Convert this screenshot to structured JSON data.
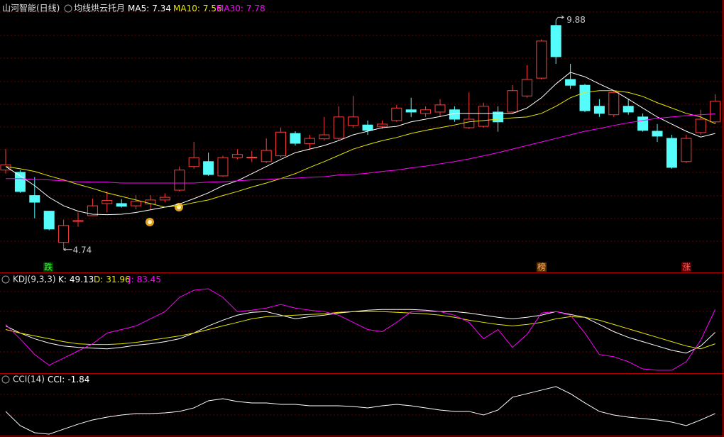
{
  "chart_data": [
    {
      "type": "candlestick",
      "title": "山河智能(日线)",
      "subtitle": "均线烘云托月",
      "open": [
        6.52,
        6.47,
        5.95,
        5.6,
        4.9,
        5.37,
        5.5,
        5.77,
        5.77,
        5.72,
        5.76,
        5.85,
        6.07,
        6.6,
        6.71,
        6.39,
        6.8,
        6.8,
        6.71,
        6.84,
        7.34,
        7.11,
        7.22,
        7.23,
        7.52,
        7.53,
        7.5,
        7.63,
        7.87,
        7.79,
        7.82,
        7.87,
        7.47,
        7.5,
        7.82,
        7.82,
        8.18,
        8.58,
        9.76,
        8.55,
        8.42,
        7.95,
        7.76,
        7.95,
        7.71,
        7.39,
        7.23,
        6.71,
        7.36,
        7.6
      ],
      "high": [
        6.99,
        6.52,
        6.36,
        5.6,
        5.41,
        5.57,
        5.88,
        6.04,
        5.87,
        5.96,
        5.96,
        6.0,
        6.6,
        7.15,
        6.91,
        6.84,
        6.99,
        6.95,
        7.23,
        7.47,
        7.39,
        7.31,
        7.71,
        7.95,
        8.18,
        7.63,
        7.63,
        7.98,
        8.14,
        7.95,
        8.11,
        7.95,
        8.26,
        8.03,
        7.95,
        8.42,
        8.87,
        9.45,
        9.88,
        8.9,
        8.45,
        8.11,
        8.3,
        8.11,
        7.79,
        7.55,
        7.31,
        7.31,
        7.87,
        8.22
      ],
      "low": [
        6.44,
        6.01,
        5.44,
        5.17,
        4.74,
        5.25,
        5.49,
        5.57,
        5.68,
        5.64,
        5.64,
        5.8,
        6.04,
        6.55,
        6.39,
        6.37,
        6.76,
        6.7,
        6.68,
        6.8,
        7.07,
        6.99,
        7.18,
        7.18,
        7.47,
        7.31,
        7.44,
        7.6,
        7.71,
        7.71,
        7.71,
        7.6,
        7.44,
        7.47,
        7.38,
        7.79,
        8.14,
        8.55,
        8.9,
        8.34,
        7.82,
        7.71,
        7.71,
        7.76,
        7.38,
        7.15,
        6.55,
        6.68,
        7.31,
        7.55
      ],
      "close": [
        6.64,
        6.04,
        5.8,
        5.2,
        5.28,
        5.39,
        5.72,
        5.84,
        5.71,
        5.82,
        5.85,
        5.91,
        6.52,
        6.8,
        6.42,
        6.8,
        6.87,
        6.81,
        6.96,
        7.37,
        7.12,
        7.23,
        7.31,
        7.71,
        7.71,
        7.41,
        7.55,
        7.91,
        7.82,
        7.87,
        7.98,
        7.66,
        7.66,
        7.95,
        7.6,
        8.3,
        8.55,
        9.41,
        9.06,
        8.42,
        7.85,
        7.79,
        8.26,
        7.82,
        7.41,
        7.28,
        6.58,
        7.23,
        7.66,
        8.06
      ],
      "up_color": "#ff3c3c",
      "down_color": "#54fcfc",
      "series": [
        {
          "name": "MA5:",
          "color": "#ffffff",
          "values": [
            6.6,
            6.39,
            6.17,
            5.91,
            5.72,
            5.6,
            5.53,
            5.52,
            5.53,
            5.57,
            5.63,
            5.69,
            5.76,
            5.88,
            6.01,
            6.17,
            6.28,
            6.44,
            6.6,
            6.76,
            6.91,
            6.99,
            7.07,
            7.18,
            7.31,
            7.39,
            7.47,
            7.5,
            7.6,
            7.66,
            7.72,
            7.79,
            7.79,
            7.79,
            7.79,
            7.79,
            7.91,
            8.14,
            8.45,
            8.71,
            8.61,
            8.45,
            8.3,
            8.11,
            7.91,
            7.71,
            7.55,
            7.39,
            7.26,
            7.34
          ]
        },
        {
          "name": "MA10:",
          "color": "#e8e800",
          "values": [
            6.6,
            6.55,
            6.49,
            6.39,
            6.3,
            6.2,
            6.11,
            6.01,
            5.93,
            5.85,
            5.77,
            5.69,
            5.72,
            5.79,
            5.85,
            5.95,
            6.04,
            6.14,
            6.23,
            6.33,
            6.44,
            6.58,
            6.71,
            6.85,
            6.99,
            7.09,
            7.18,
            7.25,
            7.34,
            7.41,
            7.47,
            7.53,
            7.6,
            7.63,
            7.66,
            7.69,
            7.71,
            7.79,
            7.95,
            8.14,
            8.26,
            8.3,
            8.3,
            8.26,
            8.17,
            8.03,
            7.91,
            7.79,
            7.71,
            7.56
          ]
        },
        {
          "name": "MA30:",
          "color": "#ff00ff",
          "values": [
            6.33,
            6.33,
            6.31,
            6.3,
            6.28,
            6.26,
            6.25,
            6.25,
            6.23,
            6.23,
            6.23,
            6.23,
            6.23,
            6.23,
            6.25,
            6.26,
            6.28,
            6.3,
            6.31,
            6.33,
            6.34,
            6.36,
            6.37,
            6.41,
            6.42,
            6.45,
            6.49,
            6.52,
            6.57,
            6.61,
            6.66,
            6.71,
            6.77,
            6.84,
            6.91,
            6.99,
            7.07,
            7.15,
            7.23,
            7.31,
            7.39,
            7.45,
            7.52,
            7.58,
            7.63,
            7.68,
            7.71,
            7.74,
            7.76,
            7.78
          ]
        }
      ],
      "ylim": [
        4.45,
        10.33
      ],
      "annotations": [
        "跌",
        "榜",
        "涨"
      ]
    },
    {
      "type": "line",
      "title": "KDJ(9,3,3)",
      "ylim": [
        -11,
        138
      ],
      "series": [
        {
          "name": "K:",
          "color": "#ffffff",
          "values": [
            58.8,
            48.1,
            39.5,
            33.0,
            28.7,
            26.6,
            25.5,
            24.4,
            26.6,
            29.8,
            32.0,
            35.2,
            39.5,
            48.1,
            58.8,
            67.4,
            74.9,
            79.2,
            80.2,
            74.9,
            69.5,
            72.7,
            74.9,
            78.1,
            80.2,
            82.4,
            83.5,
            83.5,
            83.5,
            82.4,
            80.2,
            80.2,
            78.1,
            74.9,
            71.7,
            69.5,
            71.7,
            74.9,
            80.2,
            76.0,
            71.7,
            61.0,
            50.2,
            41.6,
            35.2,
            28.7,
            22.3,
            18.0,
            28.7,
            49.13
          ]
        },
        {
          "name": "D:",
          "color": "#e8e800",
          "values": [
            53.4,
            48.1,
            43.8,
            39.5,
            35.2,
            32.0,
            30.9,
            30.9,
            32.0,
            34.1,
            37.3,
            40.5,
            43.8,
            48.1,
            53.4,
            58.8,
            64.1,
            69.5,
            72.7,
            73.8,
            74.9,
            76.0,
            77.0,
            79.2,
            80.2,
            80.2,
            80.2,
            79.2,
            78.1,
            77.0,
            74.9,
            71.7,
            67.4,
            64.1,
            61.0,
            58.8,
            61.0,
            64.1,
            69.5,
            72.7,
            71.7,
            67.4,
            61.0,
            54.5,
            48.1,
            41.6,
            35.2,
            28.7,
            24.4,
            31.96
          ]
        },
        {
          "name": "J:",
          "color": "#ff00ff",
          "values": [
            60.9,
            39.5,
            15.9,
            -0.2,
            10.5,
            21.2,
            32.0,
            48.1,
            53.4,
            58.8,
            69.5,
            80.2,
            101.7,
            112.4,
            114.6,
            101.7,
            80.2,
            82.4,
            85.6,
            91.0,
            85.6,
            82.4,
            80.2,
            74.9,
            64.1,
            53.4,
            50.2,
            64.1,
            80.2,
            80.2,
            80.2,
            74.9,
            64.1,
            39.5,
            53.4,
            26.6,
            45.9,
            78.1,
            80.2,
            74.9,
            48.1,
            15.9,
            12.6,
            5.1,
            -5.7,
            -7.7,
            -7.7,
            5.1,
            37.3,
            83.45
          ]
        }
      ]
    },
    {
      "type": "line",
      "title": "CCI(14)",
      "ylim": [
        -134,
        218
      ],
      "series": [
        {
          "name": "CCI:",
          "color": "#ffffff",
          "values": [
            10.2,
            -69.8,
            -109.8,
            -117.8,
            -89.8,
            -61.8,
            -37.8,
            -21.8,
            -9.8,
            -1.8,
            -1.8,
            2.2,
            10.2,
            30.2,
            70.2,
            82.2,
            66.2,
            58.2,
            58.2,
            50.2,
            50.2,
            42.2,
            42.2,
            42.2,
            38.2,
            30.2,
            42.2,
            50.2,
            42.2,
            30.2,
            18.2,
            10.2,
            10.2,
            -9.8,
            18.2,
            90.2,
            110.2,
            130.2,
            150.2,
            110.2,
            58.2,
            10.2,
            -9.8,
            -21.8,
            -29.8,
            -37.8,
            -49.8,
            -69.8,
            -37.8,
            -1.84
          ]
        }
      ]
    }
  ]
}
